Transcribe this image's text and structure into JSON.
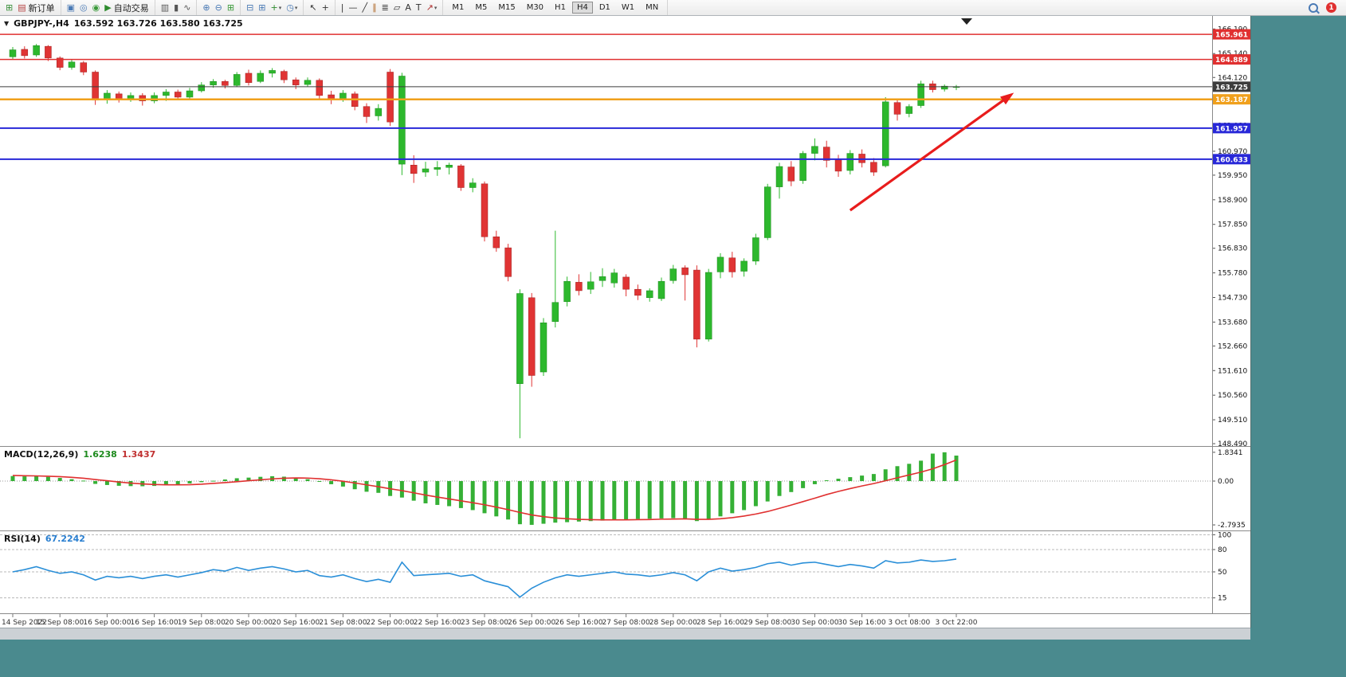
{
  "toolbar": {
    "caret_glyph": "▾",
    "groups": [
      {
        "name": "file",
        "items": [
          {
            "name": "new-chart",
            "glyph": "⊞",
            "color": "#3a8f3a"
          },
          {
            "name": "new-order",
            "glyph": "▤",
            "color": "#b54040",
            "label": "新订单"
          }
        ]
      },
      {
        "name": "windows",
        "items": [
          {
            "name": "profiles",
            "glyph": "▣",
            "color": "#4a7ab5"
          },
          {
            "name": "market-watch",
            "glyph": "◎",
            "color": "#4a7ab5"
          },
          {
            "name": "navigator",
            "glyph": "◉",
            "color": "#3a9a3a"
          },
          {
            "name": "auto-trading",
            "glyph": "▶",
            "color": "#2e8b2e",
            "label": "自动交易"
          }
        ]
      },
      {
        "name": "chart-type",
        "items": [
          {
            "name": "bar-chart",
            "glyph": "▥",
            "color": "#555555"
          },
          {
            "name": "candlestick-chart",
            "glyph": "▮",
            "color": "#555555"
          },
          {
            "name": "line-chart",
            "glyph": "∿",
            "color": "#555555"
          }
        ]
      },
      {
        "name": "zoom",
        "items": [
          {
            "name": "zoom-in",
            "glyph": "⊕",
            "color": "#4a7ab5"
          },
          {
            "name": "zoom-out",
            "glyph": "⊖",
            "color": "#4a7ab5"
          },
          {
            "name": "tile-windows",
            "glyph": "⊞",
            "color": "#3a9a3a"
          }
        ]
      },
      {
        "name": "indicators",
        "items": [
          {
            "name": "auto-scroll",
            "glyph": "⊟",
            "color": "#4a7ab5"
          },
          {
            "name": "chart-shift",
            "glyph": "⊞",
            "color": "#4a7ab5"
          },
          {
            "name": "add-indicator",
            "glyph": "+",
            "color": "#2e8b2e",
            "caret": true
          },
          {
            "name": "period",
            "glyph": "◷",
            "color": "#4a7ab5",
            "caret": true
          }
        ]
      },
      {
        "name": "cursor",
        "items": [
          {
            "name": "cursor",
            "glyph": "↖",
            "color": "#333333"
          },
          {
            "name": "crosshair",
            "glyph": "+",
            "color": "#333333"
          }
        ]
      },
      {
        "name": "objects",
        "items": [
          {
            "name": "vertical-line",
            "glyph": "|",
            "color": "#333333"
          },
          {
            "name": "horizontal-line",
            "glyph": "—",
            "color": "#333333"
          },
          {
            "name": "trendline",
            "glyph": "╱",
            "color": "#333333"
          },
          {
            "name": "channel",
            "glyph": "∥",
            "color": "#b06a2a"
          },
          {
            "name": "fibonacci",
            "glyph": "≣",
            "color": "#333333"
          },
          {
            "name": "shapes",
            "glyph": "▱",
            "color": "#333333"
          },
          {
            "name": "text",
            "glyph": "A",
            "color": "#333333"
          },
          {
            "name": "text-label",
            "glyph": "T",
            "color": "#333333"
          },
          {
            "name": "arrows",
            "glyph": "↗",
            "color": "#b03030",
            "caret": true
          }
        ]
      },
      {
        "name": "timeframes",
        "timeframe_group": true
      }
    ],
    "timeframes": [
      "M1",
      "M5",
      "M15",
      "M30",
      "H1",
      "H4",
      "D1",
      "W1",
      "MN"
    ],
    "active_timeframe": "H4",
    "right": {
      "notification_count": "1"
    }
  },
  "header": {
    "menu_glyph": "▼",
    "symbol": "GBPJPY-,H4",
    "ohlc": "163.592 163.726 163.580 163.725"
  },
  "panels": {
    "macd": {
      "label": "MACD(12,26,9)",
      "value_main": "1.6238",
      "value_signal": "1.3437",
      "axis": [
        "1.8341",
        "0.00",
        "-2.7935"
      ]
    },
    "rsi": {
      "label": "RSI(14)",
      "value": "67.2242",
      "axis": [
        "100",
        "80",
        "50",
        "15"
      ]
    }
  },
  "chart_data": {
    "type": "candlestick",
    "symbol": "GBPJPY-",
    "timeframe": "H4",
    "ohlc_header": {
      "open": "163.592",
      "high": "163.726",
      "low": "163.580",
      "close": "163.725"
    },
    "price_axis": {
      "min": 148.39,
      "max": 166.78,
      "labels": [
        "166.190",
        "165.140",
        "164.120",
        "163.100",
        "162.080",
        "160.970",
        "159.950",
        "158.900",
        "157.850",
        "156.830",
        "155.780",
        "154.730",
        "153.680",
        "152.660",
        "151.610",
        "150.560",
        "149.510",
        "148.490"
      ]
    },
    "hlines": [
      {
        "price": 165.961,
        "label": "165.961",
        "color": "#e03030",
        "width": 1.5
      },
      {
        "price": 164.889,
        "label": "164.889",
        "color": "#e03030",
        "width": 1.5
      },
      {
        "price": 163.725,
        "label": "163.725",
        "color": "#3c3c3c",
        "width": 1
      },
      {
        "price": 163.187,
        "label": "163.187",
        "color": "#f0a01c",
        "width": 2.5
      },
      {
        "price": 161.957,
        "label": "161.957",
        "color": "#2828d8",
        "width": 2
      },
      {
        "price": 160.633,
        "label": "160.633",
        "color": "#2828d8",
        "width": 2
      }
    ],
    "candles": [
      [
        165.0,
        165.42,
        164.88,
        165.3
      ],
      [
        165.32,
        165.45,
        164.93,
        165.05
      ],
      [
        165.08,
        165.55,
        165.0,
        165.48
      ],
      [
        165.45,
        165.5,
        164.82,
        164.95
      ],
      [
        164.95,
        165.02,
        164.43,
        164.55
      ],
      [
        164.55,
        164.88,
        164.45,
        164.78
      ],
      [
        164.75,
        164.82,
        164.22,
        164.35
      ],
      [
        164.35,
        164.42,
        162.95,
        163.15
      ],
      [
        163.18,
        163.58,
        163.0,
        163.45
      ],
      [
        163.42,
        163.52,
        163.05,
        163.2
      ],
      [
        163.2,
        163.48,
        163.08,
        163.35
      ],
      [
        163.35,
        163.45,
        162.92,
        163.12
      ],
      [
        163.12,
        163.48,
        163.02,
        163.35
      ],
      [
        163.35,
        163.62,
        163.12,
        163.5
      ],
      [
        163.5,
        163.6,
        163.18,
        163.28
      ],
      [
        163.28,
        163.68,
        163.22,
        163.55
      ],
      [
        163.55,
        163.92,
        163.48,
        163.8
      ],
      [
        163.8,
        164.05,
        163.68,
        163.95
      ],
      [
        163.95,
        164.02,
        163.65,
        163.78
      ],
      [
        163.78,
        164.35,
        163.72,
        164.25
      ],
      [
        164.3,
        164.45,
        163.78,
        163.9
      ],
      [
        163.95,
        164.42,
        163.88,
        164.3
      ],
      [
        164.3,
        164.52,
        164.12,
        164.42
      ],
      [
        164.38,
        164.45,
        163.88,
        164.02
      ],
      [
        164.02,
        164.12,
        163.62,
        163.8
      ],
      [
        163.82,
        164.12,
        163.72,
        164.0
      ],
      [
        164.0,
        164.08,
        163.18,
        163.35
      ],
      [
        163.38,
        163.55,
        162.98,
        163.18
      ],
      [
        163.18,
        163.58,
        163.08,
        163.45
      ],
      [
        163.42,
        163.52,
        162.72,
        162.88
      ],
      [
        162.88,
        163.02,
        162.18,
        162.45
      ],
      [
        162.48,
        162.98,
        162.28,
        162.8
      ],
      [
        164.35,
        164.48,
        162.05,
        162.22
      ],
      [
        160.42,
        164.32,
        159.95,
        164.18
      ],
      [
        160.38,
        160.8,
        159.62,
        160.02
      ],
      [
        160.08,
        160.52,
        159.88,
        160.22
      ],
      [
        160.2,
        160.55,
        159.92,
        160.28
      ],
      [
        160.28,
        160.48,
        159.98,
        160.38
      ],
      [
        160.35,
        160.42,
        159.28,
        159.42
      ],
      [
        159.42,
        159.82,
        159.22,
        159.62
      ],
      [
        159.58,
        159.68,
        157.12,
        157.32
      ],
      [
        157.32,
        157.58,
        156.68,
        156.85
      ],
      [
        156.85,
        157.02,
        155.42,
        155.62
      ],
      [
        151.05,
        155.08,
        148.72,
        154.9
      ],
      [
        154.72,
        154.92,
        150.92,
        151.4
      ],
      [
        151.55,
        153.85,
        151.38,
        153.65
      ],
      [
        153.7,
        157.58,
        153.45,
        154.52
      ],
      [
        154.55,
        155.62,
        154.35,
        155.42
      ],
      [
        155.38,
        155.72,
        154.82,
        155.02
      ],
      [
        155.08,
        155.82,
        154.88,
        155.4
      ],
      [
        155.45,
        155.98,
        155.18,
        155.62
      ],
      [
        155.35,
        155.95,
        155.15,
        155.78
      ],
      [
        155.6,
        155.72,
        154.78,
        155.08
      ],
      [
        155.08,
        155.28,
        154.62,
        154.82
      ],
      [
        154.72,
        155.12,
        154.55,
        155.02
      ],
      [
        154.68,
        155.58,
        154.58,
        155.42
      ],
      [
        155.45,
        156.12,
        155.32,
        155.95
      ],
      [
        156.0,
        156.1,
        154.6,
        155.7
      ],
      [
        155.9,
        156.1,
        152.6,
        152.95
      ],
      [
        152.95,
        155.95,
        152.85,
        155.8
      ],
      [
        155.82,
        156.62,
        155.55,
        156.45
      ],
      [
        156.42,
        156.68,
        155.58,
        155.82
      ],
      [
        155.85,
        156.4,
        155.62,
        156.28
      ],
      [
        156.28,
        157.45,
        156.12,
        157.28
      ],
      [
        157.28,
        159.58,
        157.18,
        159.45
      ],
      [
        159.45,
        160.48,
        158.95,
        160.32
      ],
      [
        160.3,
        160.55,
        159.48,
        159.7
      ],
      [
        159.72,
        160.98,
        159.58,
        160.88
      ],
      [
        160.88,
        161.52,
        160.58,
        161.18
      ],
      [
        161.15,
        161.42,
        160.28,
        160.58
      ],
      [
        160.6,
        160.82,
        159.88,
        160.12
      ],
      [
        160.15,
        161.02,
        159.98,
        160.88
      ],
      [
        160.85,
        161.05,
        160.28,
        160.48
      ],
      [
        160.5,
        160.68,
        159.92,
        160.08
      ],
      [
        160.35,
        163.28,
        160.28,
        163.08
      ],
      [
        163.05,
        163.18,
        162.28,
        162.55
      ],
      [
        162.58,
        162.98,
        162.42,
        162.88
      ],
      [
        162.92,
        163.98,
        162.82,
        163.85
      ],
      [
        163.85,
        163.98,
        163.48,
        163.6
      ],
      [
        163.62,
        163.82,
        163.52,
        163.75
      ],
      [
        163.72,
        163.8,
        163.58,
        163.725
      ]
    ],
    "time_labels": [
      {
        "i": 0,
        "t": "14 Sep 2022"
      },
      {
        "i": 4,
        "t": "15 Sep 08:00"
      },
      {
        "i": 8,
        "t": "16 Sep 00:00"
      },
      {
        "i": 12,
        "t": "16 Sep 16:00"
      },
      {
        "i": 16,
        "t": "19 Sep 08:00"
      },
      {
        "i": 20,
        "t": "20 Sep 00:00"
      },
      {
        "i": 24,
        "t": "20 Sep 16:00"
      },
      {
        "i": 28,
        "t": "21 Sep 08:00"
      },
      {
        "i": 32,
        "t": "22 Sep 00:00"
      },
      {
        "i": 36,
        "t": "22 Sep 16:00"
      },
      {
        "i": 40,
        "t": "23 Sep 08:00"
      },
      {
        "i": 44,
        "t": "26 Sep 00:00"
      },
      {
        "i": 48,
        "t": "26 Sep 16:00"
      },
      {
        "i": 52,
        "t": "27 Sep 08:00"
      },
      {
        "i": 56,
        "t": "28 Sep 00:00"
      },
      {
        "i": 60,
        "t": "28 Sep 16:00"
      },
      {
        "i": 64,
        "t": "29 Sep 08:00"
      },
      {
        "i": 68,
        "t": "30 Sep 00:00"
      },
      {
        "i": 72,
        "t": "30 Sep 16:00"
      },
      {
        "i": 76,
        "t": "3 Oct 08:00"
      },
      {
        "i": 80,
        "t": "3 Oct 22:00"
      }
    ],
    "macd": {
      "range": {
        "max": 1.8341,
        "min": -2.7935
      },
      "hist": [
        0.32,
        0.3,
        0.31,
        0.27,
        0.2,
        0.12,
        0.03,
        -0.18,
        -0.25,
        -0.3,
        -0.32,
        -0.33,
        -0.31,
        -0.27,
        -0.22,
        -0.15,
        -0.07,
        0.02,
        0.1,
        0.18,
        0.22,
        0.27,
        0.31,
        0.28,
        0.2,
        0.12,
        -0.02,
        -0.2,
        -0.35,
        -0.52,
        -0.68,
        -0.75,
        -0.95,
        -1.05,
        -1.25,
        -1.42,
        -1.52,
        -1.6,
        -1.72,
        -1.85,
        -2.05,
        -2.25,
        -2.45,
        -2.75,
        -2.79,
        -2.72,
        -2.65,
        -2.62,
        -2.58,
        -2.55,
        -2.52,
        -2.48,
        -2.45,
        -2.42,
        -2.4,
        -2.38,
        -2.36,
        -2.38,
        -2.55,
        -2.45,
        -2.25,
        -2.05,
        -1.85,
        -1.6,
        -1.3,
        -0.95,
        -0.7,
        -0.45,
        -0.2,
        0.05,
        0.15,
        0.25,
        0.35,
        0.45,
        0.75,
        0.95,
        1.1,
        1.3,
        1.75,
        1.8341,
        1.6238
      ],
      "signal": [
        0.36,
        0.34,
        0.33,
        0.31,
        0.28,
        0.24,
        0.18,
        0.1,
        0.02,
        -0.06,
        -0.13,
        -0.18,
        -0.22,
        -0.24,
        -0.24,
        -0.23,
        -0.2,
        -0.15,
        -0.1,
        -0.04,
        0.02,
        0.08,
        0.14,
        0.18,
        0.2,
        0.19,
        0.15,
        0.08,
        -0.01,
        -0.12,
        -0.24,
        -0.36,
        -0.49,
        -0.61,
        -0.75,
        -0.89,
        -1.02,
        -1.14,
        -1.26,
        -1.38,
        -1.51,
        -1.66,
        -1.82,
        -2.0,
        -2.16,
        -2.27,
        -2.35,
        -2.4,
        -2.44,
        -2.46,
        -2.47,
        -2.47,
        -2.47,
        -2.46,
        -2.45,
        -2.43,
        -2.42,
        -2.41,
        -2.44,
        -2.44,
        -2.4,
        -2.33,
        -2.23,
        -2.1,
        -1.94,
        -1.74,
        -1.53,
        -1.31,
        -1.09,
        -0.86,
        -0.66,
        -0.48,
        -0.31,
        -0.16,
        0.02,
        0.21,
        0.39,
        0.57,
        0.78,
        1.05,
        1.3437
      ]
    },
    "rsi": {
      "current": 67.2242,
      "values": [
        50,
        53,
        57,
        52,
        48,
        50,
        46,
        39,
        44,
        42,
        44,
        41,
        44,
        46,
        43,
        46,
        49,
        53,
        51,
        56,
        52,
        55,
        57,
        54,
        50,
        52,
        45,
        43,
        46,
        41,
        37,
        40,
        36,
        63,
        45,
        46,
        47,
        48,
        44,
        46,
        38,
        34,
        30,
        16,
        28,
        36,
        42,
        46,
        44,
        46,
        48,
        50,
        47,
        46,
        44,
        46,
        49,
        46,
        38,
        50,
        55,
        51,
        53,
        56,
        61,
        63,
        59,
        62,
        63,
        60,
        57,
        60,
        58,
        55,
        65,
        62,
        63,
        66,
        64,
        65,
        67.22
      ]
    },
    "arrow": {
      "from": {
        "index": 71,
        "price": 158.45
      },
      "to": {
        "index": 84.5,
        "price": 163.33
      },
      "color": "#e81c1c"
    }
  }
}
